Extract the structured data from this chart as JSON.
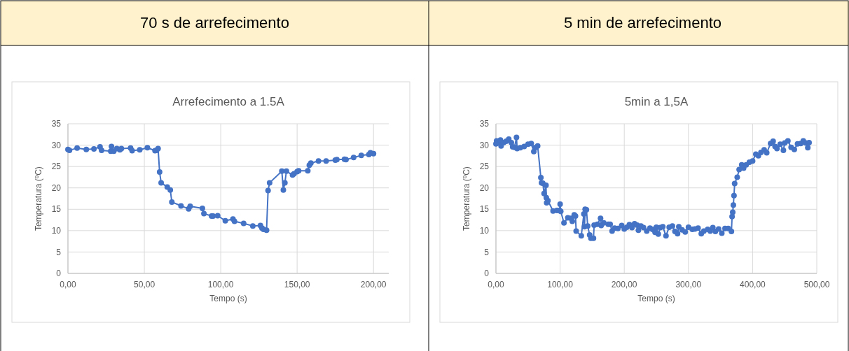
{
  "chart_data": [
    {
      "type": "line",
      "annotations": [
        "70 s de arrefecimento"
      ],
      "title": "Arrefecimento a 1.5A",
      "xlabel": "Tempo (s)",
      "ylabel": "Temperatura (ºC)",
      "xlim": [
        0,
        210
      ],
      "xticks": [
        {
          "value": 0,
          "label": "0,00"
        },
        {
          "value": 50,
          "label": "50,00"
        },
        {
          "value": 100,
          "label": "100,00"
        },
        {
          "value": 150,
          "label": "150,00"
        },
        {
          "value": 200,
          "label": "200,00"
        }
      ],
      "ylim": [
        0,
        35
      ],
      "yticks": [
        0,
        5,
        10,
        15,
        20,
        25,
        30,
        35
      ],
      "grid": true,
      "marker": "circle",
      "line_style": "solid",
      "series": [
        {
          "color": "#4472c4",
          "x": [
            0,
            1,
            6,
            12,
            17,
            21,
            22,
            28,
            28.5,
            30,
            32,
            34,
            35,
            41,
            42,
            47,
            52,
            57,
            58,
            59,
            60,
            61,
            65,
            67,
            68,
            74,
            79,
            80,
            88,
            89,
            94,
            95,
            98,
            103,
            108,
            109,
            115,
            121,
            126,
            127,
            128,
            130,
            131,
            132,
            140,
            141,
            142,
            143,
            147,
            148,
            150,
            151,
            157,
            158,
            159,
            164,
            169,
            175,
            176,
            181,
            182,
            187,
            192,
            197,
            198,
            200
          ],
          "values": [
            29,
            28.8,
            29.3,
            29,
            29.1,
            29.6,
            28.8,
            28.6,
            29.7,
            28.6,
            29.2,
            28.9,
            29.2,
            29.3,
            28.7,
            28.9,
            29.4,
            28.7,
            28.8,
            29.2,
            23.7,
            21.2,
            20.2,
            19.5,
            16.7,
            15.8,
            15.1,
            15.7,
            15.2,
            14,
            13.4,
            13.4,
            13.5,
            12.3,
            12.7,
            12.2,
            11.7,
            11.1,
            11.2,
            10.6,
            10.3,
            10.1,
            19.4,
            21.2,
            23.9,
            19.5,
            21.2,
            23.9,
            23,
            23.3,
            23.8,
            24,
            24,
            25.3,
            25.8,
            26.3,
            26.3,
            26.5,
            26.6,
            26.7,
            26.6,
            27.1,
            27.6,
            27.8,
            28.2,
            28
          ]
        }
      ]
    },
    {
      "type": "line",
      "annotations": [
        "5 min de arrefecimento"
      ],
      "title": "5min a 1,5A",
      "xlabel": "Tempo (s)",
      "ylabel": "Temperatura (ºC)",
      "xlim": [
        0,
        500
      ],
      "xticks": [
        {
          "value": 0,
          "label": "0,00"
        },
        {
          "value": 100,
          "label": "100,00"
        },
        {
          "value": 200,
          "label": "200,00"
        },
        {
          "value": 300,
          "label": "300,00"
        },
        {
          "value": 400,
          "label": "400,00"
        },
        {
          "value": 500,
          "label": "500,00"
        }
      ],
      "ylim": [
        0,
        35
      ],
      "yticks": [
        0,
        5,
        10,
        15,
        20,
        25,
        30,
        35
      ],
      "grid": true,
      "marker": "circle",
      "line_style": "solid",
      "series": [
        {
          "color": "#4472c4",
          "x": [
            0,
            1,
            3,
            7,
            8,
            12,
            16,
            20,
            24,
            26,
            29,
            32,
            33,
            38,
            44,
            50,
            55,
            59,
            61,
            65,
            70,
            71,
            73,
            75,
            78,
            78.5,
            79,
            81,
            89,
            95,
            99,
            100,
            101,
            106,
            112,
            117,
            119,
            122,
            124,
            125,
            133,
            137,
            138,
            139,
            141,
            143,
            146,
            148,
            152,
            153,
            158,
            163,
            164,
            168,
            175,
            178,
            181,
            185,
            190,
            196,
            200,
            204,
            208,
            212,
            216,
            220,
            222,
            226,
            230,
            235,
            240,
            244,
            248,
            250,
            253,
            256,
            260,
            265,
            270,
            275,
            279,
            283,
            285,
            290,
            295,
            300,
            306,
            310,
            315,
            320,
            324,
            330,
            334,
            338,
            342,
            347,
            352,
            357,
            362,
            367,
            368,
            369,
            370,
            371,
            372,
            376,
            379,
            383,
            386,
            390,
            395,
            400,
            405,
            409,
            413,
            418,
            422,
            428,
            432,
            435,
            438,
            443,
            448,
            450,
            455,
            460,
            465,
            470,
            475,
            479,
            483,
            486,
            488
          ],
          "values": [
            30.3,
            31,
            30.5,
            31.2,
            29.8,
            30.6,
            30.9,
            31.4,
            30.6,
            29.6,
            29.5,
            31.8,
            29.2,
            29.4,
            29.7,
            30.2,
            30.4,
            28.5,
            29.4,
            29.8,
            22.4,
            21.2,
            21.1,
            18.7,
            20.6,
            17.7,
            16.5,
            17,
            14.6,
            14.7,
            14.7,
            16.2,
            14.5,
            11.8,
            13,
            12.9,
            12.2,
            13.7,
            13.4,
            9.9,
            8.8,
            13.9,
            10.9,
            15,
            14.9,
            11.1,
            9,
            8.2,
            8.2,
            11.3,
            11.5,
            12.9,
            11.2,
            11.8,
            11.5,
            11.5,
            9.9,
            10.6,
            10.5,
            11.2,
            10.4,
            10.8,
            11.4,
            10.7,
            11.6,
            11.3,
            10.1,
            11.1,
            10.7,
            9.9,
            10.6,
            10.3,
            9.6,
            10.8,
            9.2,
            10.7,
            10.9,
            8.8,
            10.8,
            11.1,
            9.8,
            9.3,
            10.9,
            10.2,
            9.7,
            10.8,
            10.3,
            10.4,
            10.6,
            9.3,
            9.9,
            10.3,
            9.9,
            10.7,
            9.8,
            10.4,
            9.4,
            10.5,
            10.5,
            9.8,
            13.3,
            14.3,
            16,
            18.2,
            21,
            22.5,
            24.3,
            25.4,
            24.6,
            25.4,
            26,
            26.3,
            27.9,
            27.5,
            28.3,
            28.9,
            28.2,
            30.4,
            30.9,
            29.7,
            29.2,
            30.2,
            28.8,
            30.5,
            31,
            29.5,
            29,
            30.3,
            30.4,
            31,
            30.5,
            29.4,
            30.6
          ]
        }
      ]
    }
  ]
}
